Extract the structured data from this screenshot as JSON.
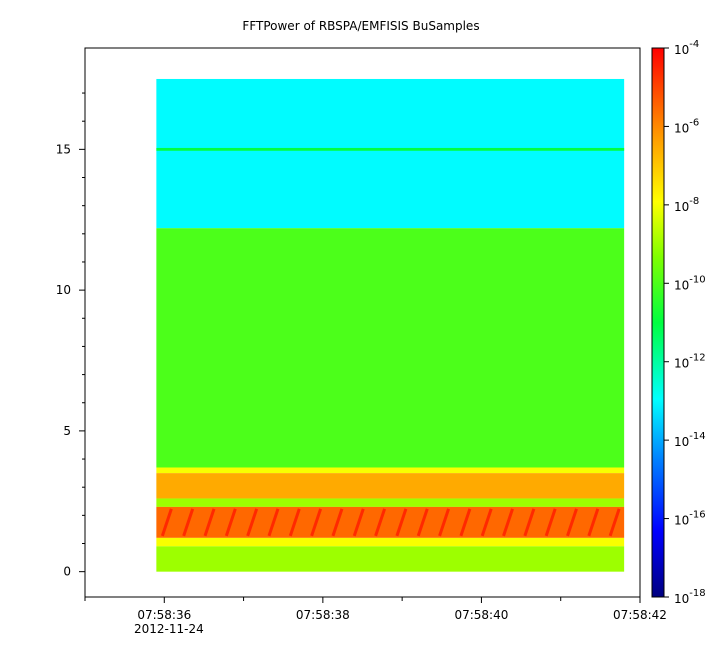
{
  "chart_data": {
    "type": "heatmap",
    "title": "FFTPower of RBSPA/EMFISIS  BuSamples",
    "xlabel": "",
    "ylabel": "",
    "x_ticks": [
      "07:58:36",
      "07:58:38",
      "07:58:40",
      "07:58:42"
    ],
    "x_date_label": "2012-11-24",
    "x_range": [
      "07:58:35.0",
      "07:58:42.0"
    ],
    "data_x_range": [
      "07:58:35.9",
      "07:58:41.8"
    ],
    "y_ticks": [
      0,
      5,
      10,
      15
    ],
    "ylim": [
      -0.9,
      18.6
    ],
    "data_y_range": [
      0,
      17.5
    ],
    "colorbar": {
      "scale": "log",
      "range": [
        1e-18,
        0.0001
      ],
      "tick_values": [
        1e-18,
        1e-16,
        1e-14,
        1e-12,
        1e-10,
        1e-08,
        1e-06,
        0.0001
      ],
      "tick_base": "10",
      "tick_exponents": [
        "-18",
        "-16",
        "-14",
        "-12",
        "-10",
        "-8",
        "-6",
        "-4"
      ],
      "colormap": "jet (dark blue -> blue -> cyan -> green -> yellow -> orange -> red)"
    },
    "intensity_bands": [
      {
        "y_range": [
          12.2,
          17.5
        ],
        "level": 1e-13,
        "note": "cyan-green"
      },
      {
        "y_range": [
          14.95,
          15.05
        ],
        "level": 1e-11,
        "note": "narrow line at 15"
      },
      {
        "y_range": [
          3.7,
          12.2
        ],
        "level": 1e-10,
        "note": "green"
      },
      {
        "y_range": [
          3.5,
          3.7
        ],
        "level": 1e-08,
        "note": "yellow"
      },
      {
        "y_range": [
          2.6,
          3.5
        ],
        "level": 3e-07,
        "note": "orange band"
      },
      {
        "y_range": [
          2.3,
          2.6
        ],
        "level": 1e-09,
        "note": "yellow-green"
      },
      {
        "y_range": [
          1.2,
          2.3
        ],
        "level": 3e-06,
        "note": "rising-tone bursts"
      },
      {
        "y_range": [
          0.9,
          1.2
        ],
        "level": 1e-08,
        "note": "yellow"
      },
      {
        "y_range": [
          0,
          0.9
        ],
        "level": 1e-09,
        "note": "yellow-green"
      }
    ],
    "grid": false
  }
}
